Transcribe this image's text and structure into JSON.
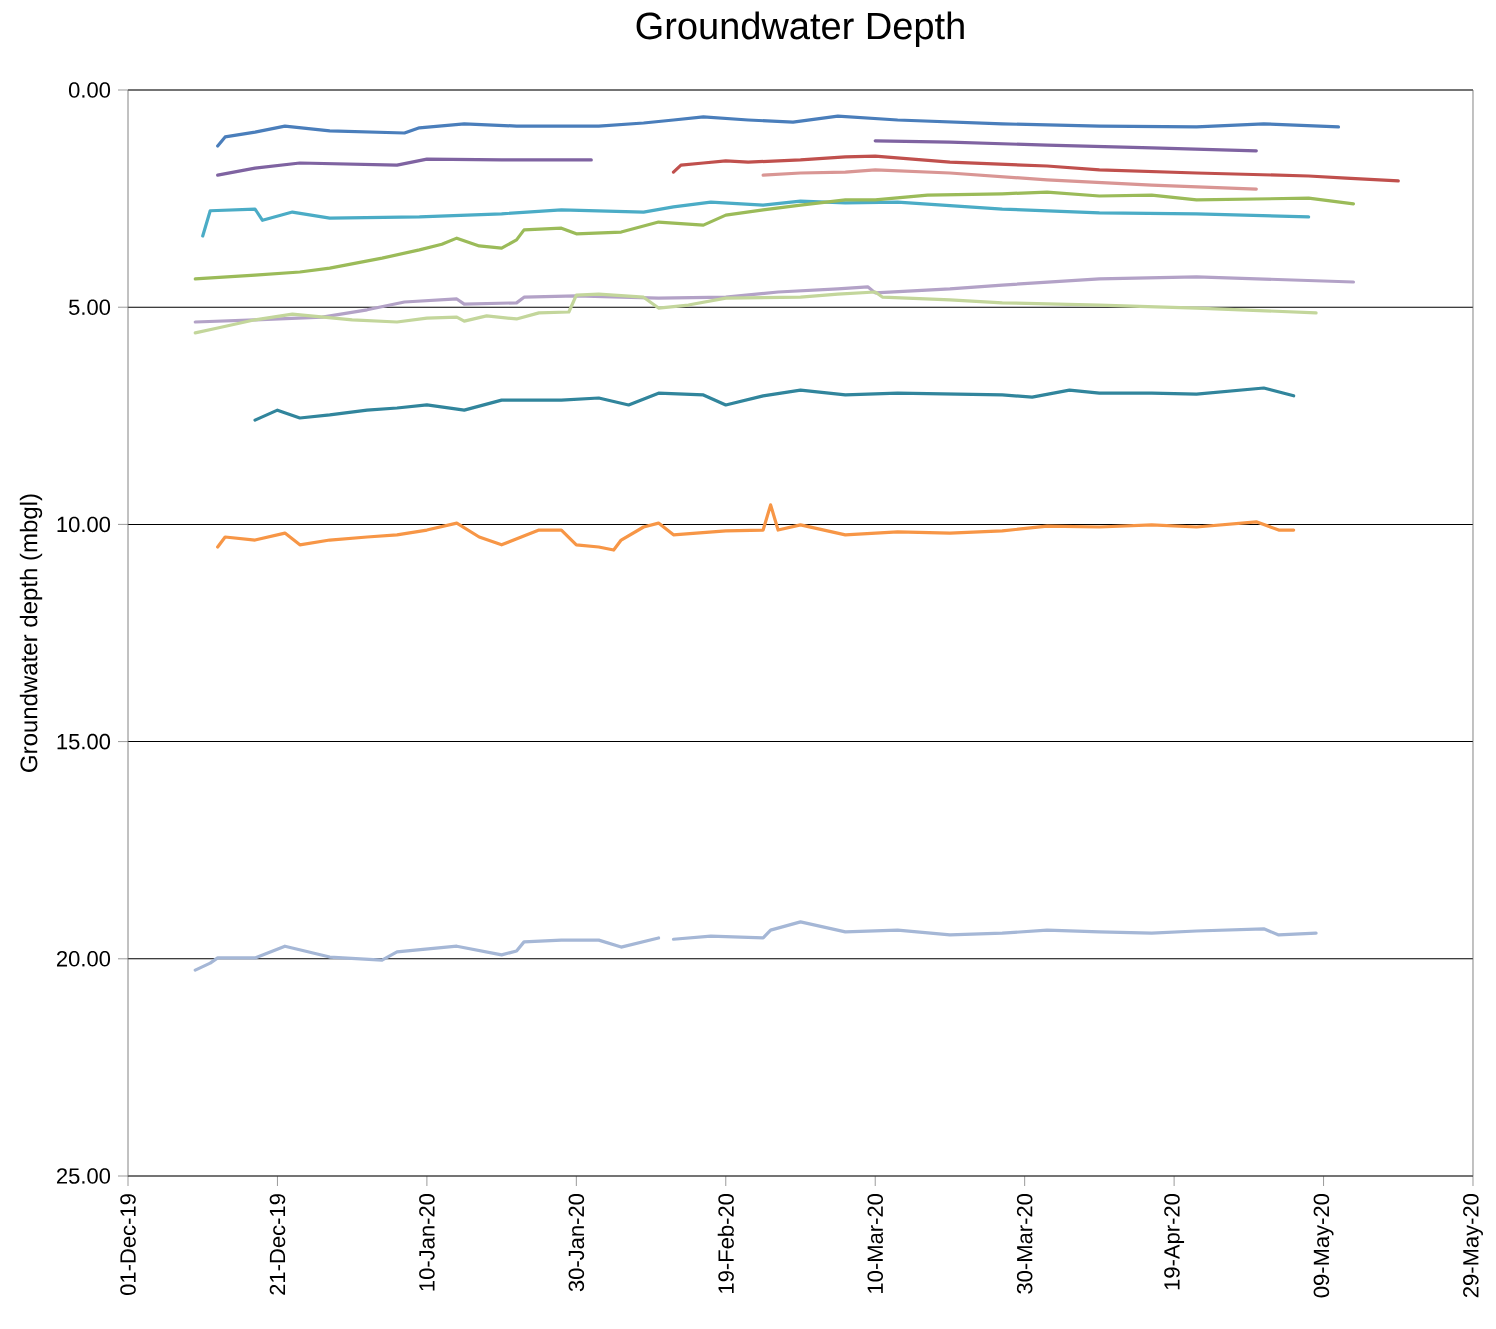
{
  "chart_data": {
    "type": "line",
    "title": "Groundwater Depth",
    "ylabel": "Groundwater depth (mbgl)",
    "xlim": [
      "2019-12-01",
      "2020-05-29"
    ],
    "xticks": [
      {
        "value": "2019-12-01",
        "label": "01-Dec-19"
      },
      {
        "value": "2019-12-21",
        "label": "21-Dec-19"
      },
      {
        "value": "2020-01-10",
        "label": "10-Jan-20"
      },
      {
        "value": "2020-01-30",
        "label": "30-Jan-20"
      },
      {
        "value": "2020-02-19",
        "label": "19-Feb-20"
      },
      {
        "value": "2020-03-10",
        "label": "10-Mar-20"
      },
      {
        "value": "2020-03-30",
        "label": "30-Mar-20"
      },
      {
        "value": "2020-04-19",
        "label": "19-Apr-20"
      },
      {
        "value": "2020-05-09",
        "label": "09-May-20"
      },
      {
        "value": "2020-05-29",
        "label": "29-May-20"
      }
    ],
    "ylim": [
      25,
      0
    ],
    "yticks": [
      {
        "value": 0,
        "label": "0.00"
      },
      {
        "value": 5,
        "label": "5.00"
      },
      {
        "value": 10,
        "label": "10.00"
      },
      {
        "value": 15,
        "label": "15.00"
      },
      {
        "value": 20,
        "label": "20.00"
      },
      {
        "value": 25,
        "label": "25.00"
      }
    ],
    "grid": "y",
    "marker": "none",
    "line_style": "solid",
    "series": [
      {
        "color": "#4a7ebb",
        "x": [
          "2019-12-13",
          "2019-12-14",
          "2019-12-18",
          "2019-12-22",
          "2019-12-28",
          "2020-01-07",
          "2020-01-09",
          "2020-01-15",
          "2020-01-22",
          "2020-02-02",
          "2020-02-08",
          "2020-02-12",
          "2020-02-16",
          "2020-02-22",
          "2020-02-28",
          "2020-03-05",
          "2020-03-13",
          "2020-03-27",
          "2020-04-09",
          "2020-04-22",
          "2020-05-01",
          "2020-05-11"
        ],
        "values": [
          1.29,
          1.08,
          0.97,
          0.83,
          0.94,
          0.99,
          0.87,
          0.78,
          0.83,
          0.83,
          0.76,
          0.69,
          0.62,
          0.69,
          0.74,
          0.6,
          0.69,
          0.78,
          0.83,
          0.85,
          0.78,
          0.85
        ]
      },
      {
        "color": "#7f63a1",
        "x": [
          "2019-12-13",
          "2019-12-18",
          "2019-12-24",
          "2020-01-06",
          "2020-01-10",
          "2020-01-20",
          "2020-02-01",
          "2020-02-15",
          "2020-03-10",
          "2020-03-20",
          "2020-04-02",
          "2020-04-16",
          "2020-04-30"
        ],
        "values": [
          1.96,
          1.8,
          1.68,
          1.73,
          1.59,
          1.61,
          1.61,
          null,
          1.17,
          1.2,
          1.27,
          1.33,
          1.4
        ]
      },
      {
        "color": "#c0504d",
        "x": [
          "2020-02-12",
          "2020-02-13",
          "2020-02-16",
          "2020-02-19",
          "2020-02-22",
          "2020-02-29",
          "2020-03-06",
          "2020-03-10",
          "2020-03-20",
          "2020-04-02",
          "2020-04-09",
          "2020-04-22",
          "2020-05-07",
          "2020-05-12",
          "2020-05-19"
        ],
        "values": [
          1.89,
          1.73,
          1.68,
          1.63,
          1.66,
          1.61,
          1.54,
          1.52,
          1.66,
          1.75,
          1.84,
          1.91,
          1.98,
          2.03,
          2.09
        ]
      },
      {
        "color": "#d99694",
        "x": [
          "2020-02-24",
          "2020-02-29",
          "2020-03-06",
          "2020-03-10",
          "2020-03-20",
          "2020-04-02",
          "2020-04-16",
          "2020-04-30"
        ],
        "values": [
          1.96,
          1.91,
          1.89,
          1.84,
          1.91,
          2.07,
          2.19,
          2.28
        ]
      },
      {
        "color": "#4bacc6",
        "x": [
          "2019-12-11",
          "2019-12-12",
          "2019-12-18",
          "2019-12-19",
          "2019-12-23",
          "2019-12-28",
          "2020-01-09",
          "2020-01-20",
          "2020-01-28",
          "2020-02-08",
          "2020-02-12",
          "2020-02-17",
          "2020-02-24",
          "2020-02-29",
          "2020-03-06",
          "2020-03-13",
          "2020-03-27",
          "2020-04-09",
          "2020-04-22",
          "2020-05-07"
        ],
        "values": [
          3.36,
          2.78,
          2.74,
          3.0,
          2.81,
          2.95,
          2.92,
          2.85,
          2.76,
          2.81,
          2.69,
          2.58,
          2.65,
          2.56,
          2.6,
          2.58,
          2.74,
          2.83,
          2.85,
          2.92
        ]
      },
      {
        "color": "#9bbb59",
        "x": [
          "2019-12-10",
          "2019-12-18",
          "2019-12-24",
          "2019-12-28",
          "2020-01-04",
          "2020-01-09",
          "2020-01-12",
          "2020-01-14",
          "2020-01-17",
          "2020-01-20",
          "2020-01-22",
          "2020-01-23",
          "2020-01-28",
          "2020-01-30",
          "2020-02-05",
          "2020-02-10",
          "2020-02-16",
          "2020-02-19",
          "2020-02-24",
          "2020-02-29",
          "2020-03-06",
          "2020-03-10",
          "2020-03-17",
          "2020-03-27",
          "2020-04-02",
          "2020-04-09",
          "2020-04-16",
          "2020-04-22",
          "2020-05-07",
          "2020-05-13"
        ],
        "values": [
          4.35,
          4.26,
          4.19,
          4.1,
          3.87,
          3.68,
          3.55,
          3.41,
          3.59,
          3.64,
          3.45,
          3.22,
          3.18,
          3.31,
          3.27,
          3.04,
          3.11,
          2.88,
          2.76,
          2.65,
          2.53,
          2.53,
          2.42,
          2.39,
          2.35,
          2.44,
          2.42,
          2.53,
          2.49,
          2.62
        ]
      },
      {
        "color": "#b3a2c7",
        "x": [
          "2019-12-10",
          "2019-12-18",
          "2019-12-27",
          "2020-01-02",
          "2020-01-07",
          "2020-01-14",
          "2020-01-15",
          "2020-01-22",
          "2020-01-23",
          "2020-01-30",
          "2020-02-10",
          "2020-02-19",
          "2020-02-26",
          "2020-03-05",
          "2020-03-09",
          "2020-03-10",
          "2020-03-20",
          "2020-03-27",
          "2020-04-09",
          "2020-04-22",
          "2020-05-13"
        ],
        "values": [
          5.34,
          5.29,
          5.23,
          5.06,
          4.88,
          4.81,
          4.93,
          4.9,
          4.77,
          4.74,
          4.79,
          4.77,
          4.65,
          4.58,
          4.53,
          4.67,
          4.58,
          4.49,
          4.35,
          4.3,
          4.42
        ]
      },
      {
        "color": "#c3d69b",
        "x": [
          "2019-12-10",
          "2019-12-13",
          "2019-12-18",
          "2019-12-23",
          "2019-12-31",
          "2020-01-06",
          "2020-01-10",
          "2020-01-14",
          "2020-01-15",
          "2020-01-18",
          "2020-01-22",
          "2020-01-25",
          "2020-01-29",
          "2020-01-30",
          "2020-02-02",
          "2020-02-08",
          "2020-02-10",
          "2020-02-14",
          "2020-02-19",
          "2020-02-29",
          "2020-03-05",
          "2020-03-10",
          "2020-03-11",
          "2020-03-20",
          "2020-03-27",
          "2020-04-09",
          "2020-04-22",
          "2020-05-08"
        ],
        "values": [
          5.59,
          5.48,
          5.29,
          5.16,
          5.29,
          5.34,
          5.25,
          5.23,
          5.32,
          5.2,
          5.27,
          5.13,
          5.11,
          4.72,
          4.7,
          4.77,
          5.02,
          4.95,
          4.79,
          4.77,
          4.7,
          4.65,
          4.77,
          4.83,
          4.9,
          4.95,
          5.02,
          5.13
        ]
      },
      {
        "color": "#31859c",
        "x": [
          "2019-12-18",
          "2019-12-21",
          "2019-12-24",
          "2019-12-28",
          "2020-01-02",
          "2020-01-06",
          "2020-01-10",
          "2020-01-15",
          "2020-01-20",
          "2020-01-28",
          "2020-02-02",
          "2020-02-06",
          "2020-02-10",
          "2020-02-16",
          "2020-02-19",
          "2020-02-24",
          "2020-02-29",
          "2020-03-06",
          "2020-03-13",
          "2020-03-27",
          "2020-03-31",
          "2020-04-05",
          "2020-04-09",
          "2020-04-16",
          "2020-04-22",
          "2020-05-01",
          "2020-05-05"
        ],
        "values": [
          7.6,
          7.37,
          7.55,
          7.48,
          7.37,
          7.32,
          7.25,
          7.37,
          7.14,
          7.14,
          7.09,
          7.25,
          6.98,
          7.02,
          7.25,
          7.04,
          6.91,
          7.02,
          6.98,
          7.02,
          7.07,
          6.91,
          6.98,
          6.98,
          7.0,
          6.86,
          7.04
        ]
      },
      {
        "color": "#f79646",
        "x": [
          "2019-12-13",
          "2019-12-14",
          "2019-12-18",
          "2019-12-22",
          "2019-12-24",
          "2019-12-28",
          "2020-01-02",
          "2020-01-06",
          "2020-01-10",
          "2020-01-14",
          "2020-01-17",
          "2020-01-20",
          "2020-01-25",
          "2020-01-28",
          "2020-01-30",
          "2020-02-02",
          "2020-02-04",
          "2020-02-05",
          "2020-02-08",
          "2020-02-10",
          "2020-02-12",
          "2020-02-19",
          "2020-02-24",
          "2020-02-25",
          "2020-02-26",
          "2020-02-29",
          "2020-03-06",
          "2020-03-13",
          "2020-03-20",
          "2020-03-27",
          "2020-04-02",
          "2020-04-09",
          "2020-04-16",
          "2020-04-22",
          "2020-04-30",
          "2020-05-03",
          "2020-05-05"
        ],
        "values": [
          10.52,
          10.29,
          10.36,
          10.2,
          10.47,
          10.36,
          10.29,
          10.24,
          10.13,
          9.97,
          10.29,
          10.47,
          10.13,
          10.13,
          10.47,
          10.52,
          10.59,
          10.36,
          10.06,
          9.97,
          10.24,
          10.15,
          10.13,
          9.55,
          10.13,
          10.01,
          10.24,
          10.17,
          10.2,
          10.15,
          10.04,
          10.06,
          10.01,
          10.06,
          9.94,
          10.13,
          10.13
        ]
      },
      {
        "color": "#a5b7d6",
        "x": [
          "2019-12-10",
          "2019-12-12",
          "2019-12-13",
          "2019-12-18",
          "2019-12-22",
          "2019-12-28",
          "2020-01-04",
          "2020-01-06",
          "2020-01-14",
          "2020-01-20",
          "2020-01-22",
          "2020-01-23",
          "2020-01-28",
          "2020-02-02",
          "2020-02-05",
          "2020-02-10",
          "2020-02-11",
          "2020-02-12",
          "2020-02-17",
          "2020-02-24",
          "2020-02-25",
          "2020-02-29",
          "2020-03-06",
          "2020-03-13",
          "2020-03-20",
          "2020-03-27",
          "2020-04-02",
          "2020-04-09",
          "2020-04-16",
          "2020-04-22",
          "2020-05-01",
          "2020-05-03",
          "2020-05-08"
        ],
        "values": [
          20.26,
          20.1,
          19.98,
          19.98,
          19.71,
          19.96,
          20.03,
          19.84,
          19.71,
          19.91,
          19.82,
          19.61,
          19.57,
          19.57,
          19.73,
          19.52,
          null,
          19.55,
          19.48,
          19.52,
          19.34,
          19.15,
          19.38,
          19.34,
          19.45,
          19.41,
          19.34,
          19.38,
          19.41,
          19.36,
          19.31,
          19.45,
          19.41
        ]
      }
    ]
  }
}
